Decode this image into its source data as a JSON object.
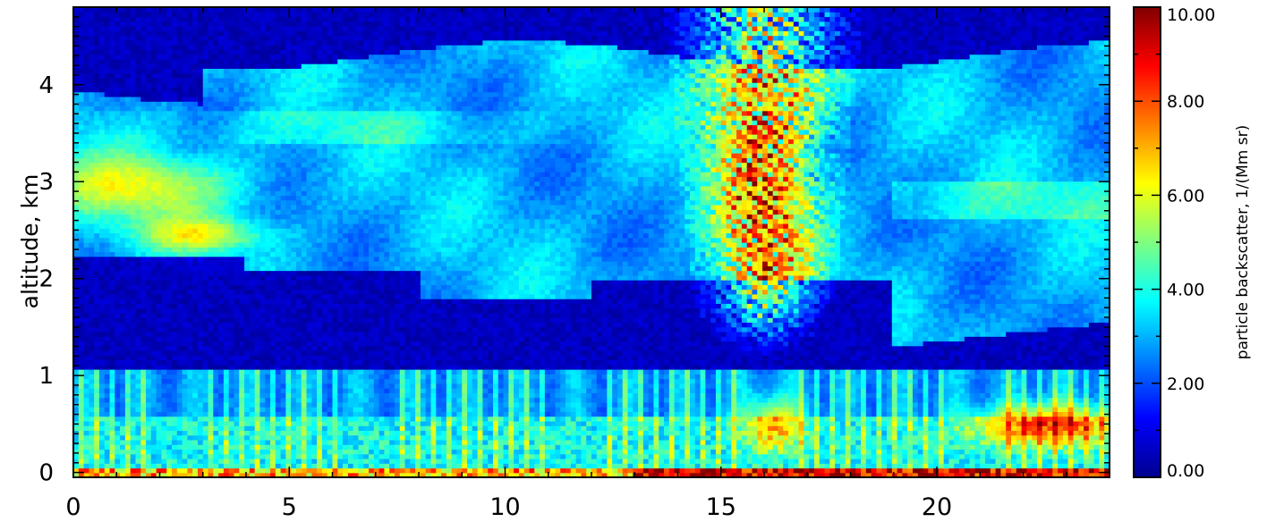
{
  "chart_data": {
    "type": "heatmap",
    "title": "",
    "xlabel": "",
    "ylabel": "altitude,  km",
    "x_ticks": [
      0,
      5,
      10,
      15,
      20
    ],
    "y_ticks": [
      0,
      1,
      2,
      3,
      4
    ],
    "xlim": [
      0,
      24
    ],
    "ylim": [
      -0.05,
      4.8
    ],
    "colorbar": {
      "label": "particle backscatter, 1/(Mm sr)",
      "min": 0,
      "max": 10,
      "tick_values": [
        0,
        2,
        4,
        6,
        8,
        10
      ],
      "tick_labels": [
        "0.00",
        "2.00",
        "4.00",
        "6.00",
        "8.00",
        "10.00"
      ],
      "colormap": "jet"
    },
    "colors": {
      "frame": "#000000",
      "background_dark": "#00008f"
    },
    "features": [
      {
        "name": "elevated aerosol layer",
        "x_range": [
          0,
          24
        ],
        "y_range": [
          2.2,
          4.3
        ],
        "value_approx": 3.5
      },
      {
        "name": "dense layer near 2.5 km",
        "x_range": [
          0,
          4
        ],
        "y_range": [
          2.3,
          3.2
        ],
        "value_approx": 5.5
      },
      {
        "name": "plume",
        "x_range": [
          15,
          17
        ],
        "y_range": [
          1.8,
          4.8
        ],
        "value_approx": 7.5
      },
      {
        "name": "surface layer",
        "x_range": [
          0,
          24
        ],
        "y_range": [
          0,
          1.0
        ],
        "value_approx": 4.0
      },
      {
        "name": "surface maximum",
        "x_range": [
          21,
          24
        ],
        "y_range": [
          0.3,
          0.7
        ],
        "value_approx": 8.5
      }
    ]
  }
}
